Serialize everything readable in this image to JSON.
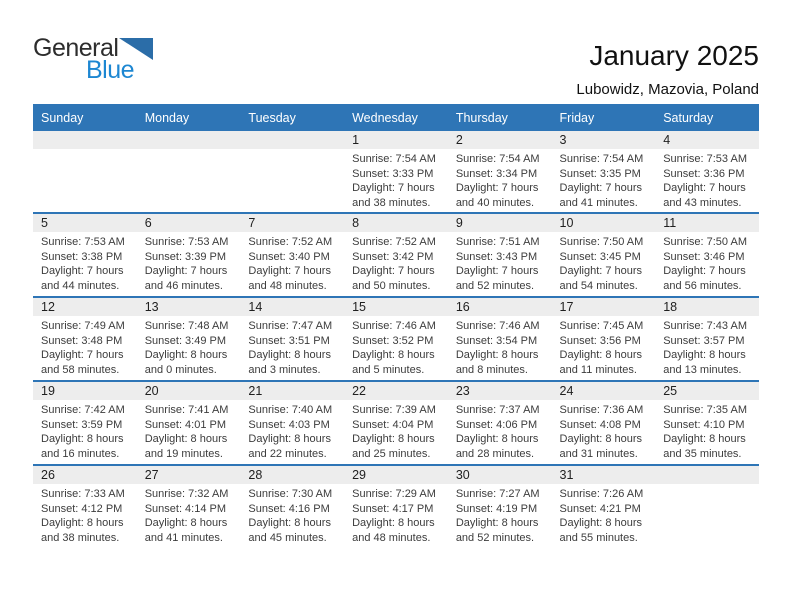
{
  "logo": {
    "text_top": "General",
    "text_bottom": "Blue"
  },
  "header": {
    "title": "January 2025",
    "location": "Lubowidz, Mazovia, Poland"
  },
  "labels": {
    "sunrise": "Sunrise:",
    "sunset": "Sunset:",
    "daylight": "Daylight:"
  },
  "colors": {
    "header_bar": "#2e75b6",
    "row_divider": "#2e75b6",
    "date_band": "#ededed",
    "logo_blue_text": "#1d87d2",
    "logo_triangle": "#2b6da8"
  },
  "calendar": {
    "day_headers": [
      "Sunday",
      "Monday",
      "Tuesday",
      "Wednesday",
      "Thursday",
      "Friday",
      "Saturday"
    ],
    "weeks": [
      [
        {
          "date": ""
        },
        {
          "date": ""
        },
        {
          "date": ""
        },
        {
          "date": "1",
          "sunrise": "7:54 AM",
          "sunset": "3:33 PM",
          "daylight": "7 hours and 38 minutes."
        },
        {
          "date": "2",
          "sunrise": "7:54 AM",
          "sunset": "3:34 PM",
          "daylight": "7 hours and 40 minutes."
        },
        {
          "date": "3",
          "sunrise": "7:54 AM",
          "sunset": "3:35 PM",
          "daylight": "7 hours and 41 minutes."
        },
        {
          "date": "4",
          "sunrise": "7:53 AM",
          "sunset": "3:36 PM",
          "daylight": "7 hours and 43 minutes."
        }
      ],
      [
        {
          "date": "5",
          "sunrise": "7:53 AM",
          "sunset": "3:38 PM",
          "daylight": "7 hours and 44 minutes."
        },
        {
          "date": "6",
          "sunrise": "7:53 AM",
          "sunset": "3:39 PM",
          "daylight": "7 hours and 46 minutes."
        },
        {
          "date": "7",
          "sunrise": "7:52 AM",
          "sunset": "3:40 PM",
          "daylight": "7 hours and 48 minutes."
        },
        {
          "date": "8",
          "sunrise": "7:52 AM",
          "sunset": "3:42 PM",
          "daylight": "7 hours and 50 minutes."
        },
        {
          "date": "9",
          "sunrise": "7:51 AM",
          "sunset": "3:43 PM",
          "daylight": "7 hours and 52 minutes."
        },
        {
          "date": "10",
          "sunrise": "7:50 AM",
          "sunset": "3:45 PM",
          "daylight": "7 hours and 54 minutes."
        },
        {
          "date": "11",
          "sunrise": "7:50 AM",
          "sunset": "3:46 PM",
          "daylight": "7 hours and 56 minutes."
        }
      ],
      [
        {
          "date": "12",
          "sunrise": "7:49 AM",
          "sunset": "3:48 PM",
          "daylight": "7 hours and 58 minutes."
        },
        {
          "date": "13",
          "sunrise": "7:48 AM",
          "sunset": "3:49 PM",
          "daylight": "8 hours and 0 minutes."
        },
        {
          "date": "14",
          "sunrise": "7:47 AM",
          "sunset": "3:51 PM",
          "daylight": "8 hours and 3 minutes."
        },
        {
          "date": "15",
          "sunrise": "7:46 AM",
          "sunset": "3:52 PM",
          "daylight": "8 hours and 5 minutes."
        },
        {
          "date": "16",
          "sunrise": "7:46 AM",
          "sunset": "3:54 PM",
          "daylight": "8 hours and 8 minutes."
        },
        {
          "date": "17",
          "sunrise": "7:45 AM",
          "sunset": "3:56 PM",
          "daylight": "8 hours and 11 minutes."
        },
        {
          "date": "18",
          "sunrise": "7:43 AM",
          "sunset": "3:57 PM",
          "daylight": "8 hours and 13 minutes."
        }
      ],
      [
        {
          "date": "19",
          "sunrise": "7:42 AM",
          "sunset": "3:59 PM",
          "daylight": "8 hours and 16 minutes."
        },
        {
          "date": "20",
          "sunrise": "7:41 AM",
          "sunset": "4:01 PM",
          "daylight": "8 hours and 19 minutes."
        },
        {
          "date": "21",
          "sunrise": "7:40 AM",
          "sunset": "4:03 PM",
          "daylight": "8 hours and 22 minutes."
        },
        {
          "date": "22",
          "sunrise": "7:39 AM",
          "sunset": "4:04 PM",
          "daylight": "8 hours and 25 minutes."
        },
        {
          "date": "23",
          "sunrise": "7:37 AM",
          "sunset": "4:06 PM",
          "daylight": "8 hours and 28 minutes."
        },
        {
          "date": "24",
          "sunrise": "7:36 AM",
          "sunset": "4:08 PM",
          "daylight": "8 hours and 31 minutes."
        },
        {
          "date": "25",
          "sunrise": "7:35 AM",
          "sunset": "4:10 PM",
          "daylight": "8 hours and 35 minutes."
        }
      ],
      [
        {
          "date": "26",
          "sunrise": "7:33 AM",
          "sunset": "4:12 PM",
          "daylight": "8 hours and 38 minutes."
        },
        {
          "date": "27",
          "sunrise": "7:32 AM",
          "sunset": "4:14 PM",
          "daylight": "8 hours and 41 minutes."
        },
        {
          "date": "28",
          "sunrise": "7:30 AM",
          "sunset": "4:16 PM",
          "daylight": "8 hours and 45 minutes."
        },
        {
          "date": "29",
          "sunrise": "7:29 AM",
          "sunset": "4:17 PM",
          "daylight": "8 hours and 48 minutes."
        },
        {
          "date": "30",
          "sunrise": "7:27 AM",
          "sunset": "4:19 PM",
          "daylight": "8 hours and 52 minutes."
        },
        {
          "date": "31",
          "sunrise": "7:26 AM",
          "sunset": "4:21 PM",
          "daylight": "8 hours and 55 minutes."
        },
        {
          "date": ""
        }
      ]
    ]
  }
}
